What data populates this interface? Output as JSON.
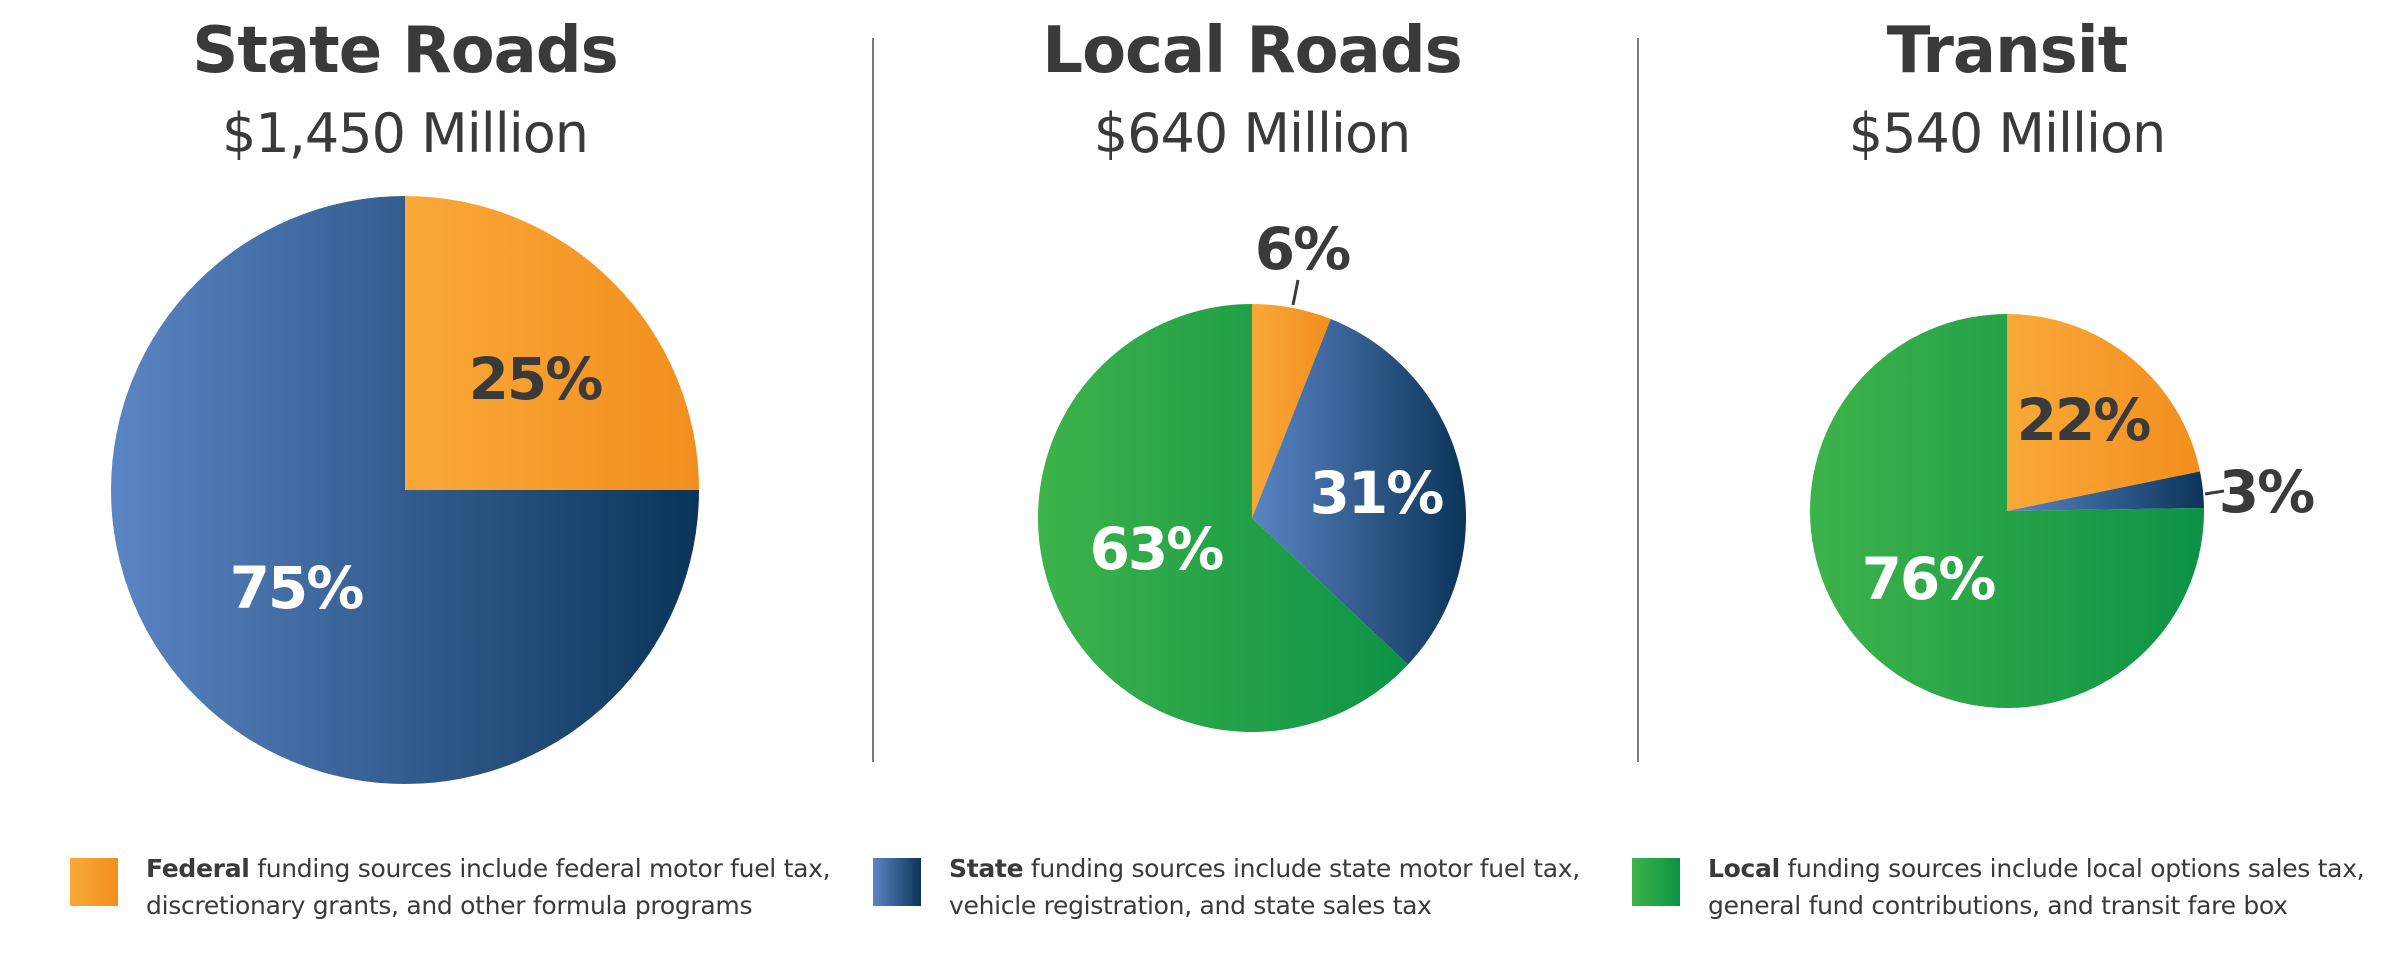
{
  "colors": {
    "federal": [
      "#f9a938",
      "#f28e1e"
    ],
    "state": [
      "#5b85c4",
      "#0b3459"
    ],
    "local": [
      "#3db34a",
      "#0d9246"
    ],
    "text": "#3a3a3a",
    "divider": "#7a7a7a"
  },
  "chart_data": [
    {
      "type": "pie",
      "title": "State Roads",
      "subtitle": "$1,450 Million",
      "slices": [
        {
          "name": "Federal",
          "value": 25,
          "label": "25%"
        },
        {
          "name": "State",
          "value": 75,
          "label": "75%"
        }
      ]
    },
    {
      "type": "pie",
      "title": "Local Roads",
      "subtitle": "$640 Million",
      "slices": [
        {
          "name": "Federal",
          "value": 6,
          "label": "6%"
        },
        {
          "name": "State",
          "value": 31,
          "label": "31%"
        },
        {
          "name": "Local",
          "value": 63,
          "label": "63%"
        }
      ]
    },
    {
      "type": "pie",
      "title": "Transit",
      "subtitle": "$540 Million",
      "slices": [
        {
          "name": "Federal",
          "value": 22,
          "label": "22%"
        },
        {
          "name": "State",
          "value": 3,
          "label": "3%"
        },
        {
          "name": "Local",
          "value": 76,
          "label": "76%"
        }
      ]
    }
  ],
  "legend": [
    {
      "key": "federal",
      "bold": "Federal",
      "line1": " funding sources include federal motor fuel tax,",
      "line2": "discretionary grants, and other formula programs"
    },
    {
      "key": "state",
      "bold": "State",
      "line1": " funding sources include state motor fuel tax,",
      "line2": "vehicle registration, and state sales tax"
    },
    {
      "key": "local",
      "bold": "Local",
      "line1": " funding sources include local options sales tax,",
      "line2": "general fund contributions, and transit fare box"
    }
  ]
}
